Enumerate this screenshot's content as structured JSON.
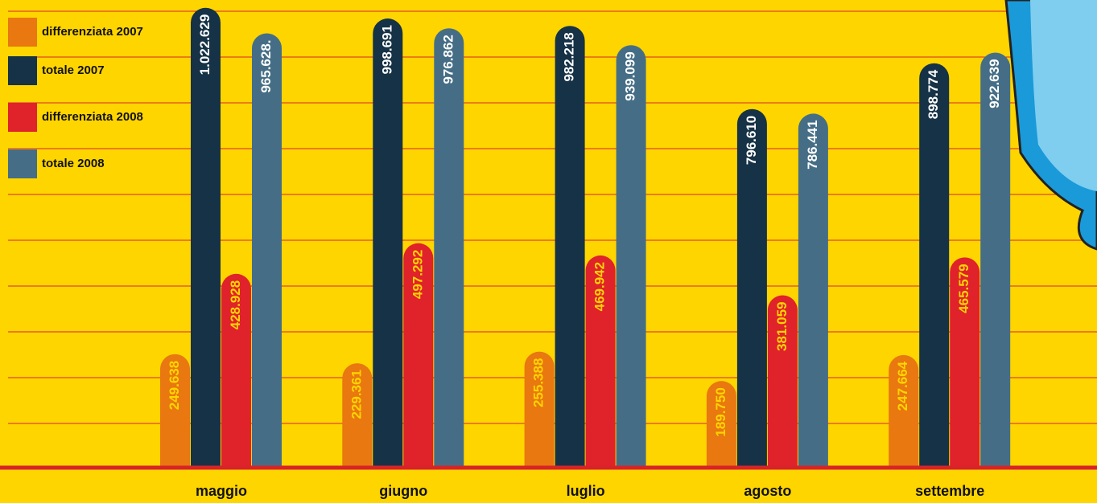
{
  "chart_data": {
    "type": "bar",
    "categories": [
      "maggio",
      "giugno",
      "luglio",
      "agosto",
      "settembre"
    ],
    "series": [
      {
        "name": "differenziata 2007",
        "color": "#e8780f",
        "label_color": "#ffd500",
        "values": [
          249638,
          229361,
          255388,
          189750,
          247664
        ],
        "value_labels": [
          "249.638",
          "229.361",
          "255.388",
          "189.750",
          "247.664"
        ]
      },
      {
        "name": "totale 2007",
        "color": "#163246",
        "label_color": "#ffffff",
        "values": [
          1022629,
          998691,
          982218,
          796610,
          898774
        ],
        "value_labels": [
          "1.022.629",
          "998.691",
          "982.218",
          "796.610",
          "898.774"
        ]
      },
      {
        "name": "differenziata 2008",
        "color": "#e0222b",
        "label_color": "#ffd500",
        "values": [
          428928,
          497292,
          469942,
          381059,
          465579
        ],
        "value_labels": [
          "428.928",
          "497.292",
          "469.942",
          "381.059",
          "465.579"
        ]
      },
      {
        "name": "totale 2008",
        "color": "#456e86",
        "label_color": "#ffffff",
        "values": [
          965628,
          976862,
          939099,
          786441,
          922639
        ],
        "value_labels": [
          "965.628.",
          "976.862",
          "939.099",
          "786.441",
          "922.639"
        ]
      }
    ],
    "ylim": [
      0,
      1040000
    ],
    "grid": true,
    "legend": "top-left"
  }
}
